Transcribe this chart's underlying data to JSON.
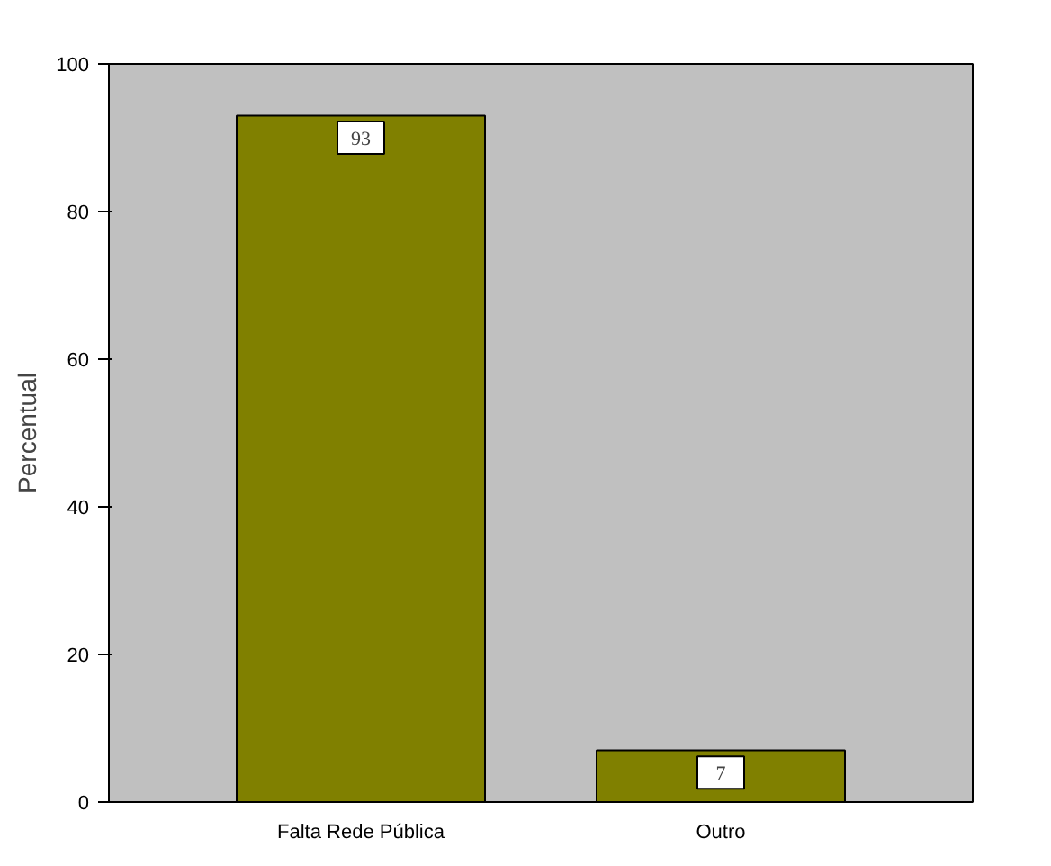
{
  "chart_data": {
    "type": "bar",
    "ylabel": "Percentual",
    "categories": [
      "Falta Rede Pública",
      "Outro"
    ],
    "values": [
      93,
      7
    ],
    "color": "#808000",
    "ylim": [
      0,
      100
    ],
    "yticks": [
      0,
      20,
      40,
      60,
      80,
      100
    ],
    "grid": false,
    "data_labels": true
  }
}
